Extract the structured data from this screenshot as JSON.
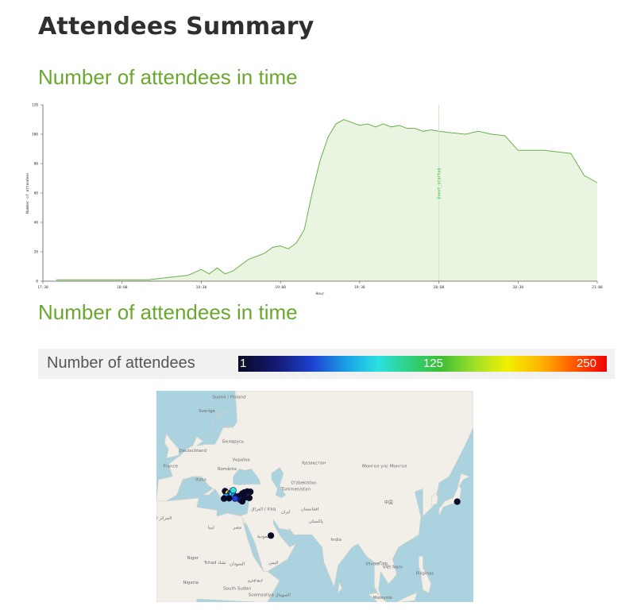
{
  "page": {
    "title": "Attendees Summary"
  },
  "sections": [
    {
      "title": "Number of attendees in time"
    },
    {
      "title": "Number of attendees in time"
    }
  ],
  "chart_data": {
    "type": "area",
    "title": "",
    "xlabel": "Hour",
    "ylabel": "Number of attendees",
    "x_ticks": [
      "17:30",
      "18:00",
      "18:30",
      "19:00",
      "19:30",
      "20:00",
      "20:30",
      "21:00"
    ],
    "y_ticks": [
      0,
      20,
      40,
      60,
      80,
      100,
      120
    ],
    "ylim": [
      0,
      120
    ],
    "annotation": {
      "x": "20:00",
      "label": "Event_started"
    },
    "series": [
      {
        "x": [
          "17:35",
          "17:40",
          "17:45",
          "17:50",
          "17:55",
          "18:00",
          "18:05",
          "18:10",
          "18:15",
          "18:20",
          "18:25",
          "18:30",
          "18:33",
          "18:36",
          "18:39",
          "18:42",
          "18:45",
          "18:48",
          "18:51",
          "18:54",
          "18:57",
          "19:00",
          "19:03",
          "19:06",
          "19:09",
          "19:12",
          "19:15",
          "19:18",
          "19:21",
          "19:24",
          "19:27",
          "19:30",
          "19:33",
          "19:36",
          "19:39",
          "19:42",
          "19:45",
          "19:48",
          "19:51",
          "19:54",
          "19:57",
          "20:00",
          "20:05",
          "20:10",
          "20:15",
          "20:20",
          "20:25",
          "20:30",
          "20:35",
          "20:40",
          "20:45",
          "20:50",
          "20:55",
          "21:00"
        ],
        "values": [
          1,
          1,
          1,
          1,
          1,
          1,
          1,
          1,
          2,
          3,
          4,
          8,
          5,
          9,
          5,
          7,
          11,
          15,
          17,
          19,
          23,
          24,
          22,
          26,
          35,
          60,
          82,
          98,
          107,
          110,
          108,
          106,
          107,
          105,
          107,
          105,
          106,
          104,
          104,
          102,
          103,
          102,
          101,
          100,
          102,
          100,
          99,
          89,
          89,
          89,
          88,
          87,
          72,
          67
        ]
      }
    ],
    "colors": {
      "line": "#6ab04c",
      "fill": "#eaf5e1",
      "annotation": "#2fbf2f"
    }
  },
  "legend": {
    "label": "Number of attendees",
    "ticks": [
      "1",
      "125",
      "250"
    ]
  },
  "map": {
    "place_labels": [
      "Suomi / Finland",
      "Sverige",
      "Беларусь",
      "Deutschland",
      "France",
      "Україна",
      "România",
      "Italia",
      "Қазақстан",
      "Монгол улс Монгол",
      "O'zbekiston",
      "Türkmenistan",
      "中国",
      "العراق / Iraq",
      "ایران",
      "افغانستان",
      "پاکستان",
      "السعودية",
      "India",
      "ليبيا",
      "Niger",
      "Tchad تشاد",
      "السودان",
      "Nigeria",
      "South Sudan",
      "ኢትዮጵያ",
      "Soomaaliya الصومال",
      "اليمن",
      "Việt Nam",
      "Pilipinas",
      "Malaysia",
      "ประเทศไทย",
      "ria / الجزائر",
      "مصر"
    ],
    "colors": {
      "sea": "#aad3df",
      "land": "#f2efe9",
      "border": "#b9a9c6"
    },
    "points": [
      {
        "lon": 24,
        "lat": 39.2,
        "count": 5
      },
      {
        "lon": 25.5,
        "lat": 38.6,
        "count": 200
      },
      {
        "lon": 26.5,
        "lat": 38.4,
        "count": 60
      },
      {
        "lon": 27.5,
        "lat": 38.2,
        "count": 110
      },
      {
        "lon": 28.5,
        "lat": 37.8,
        "count": 80
      },
      {
        "lon": 29.5,
        "lat": 37.4,
        "count": 30
      },
      {
        "lon": 31,
        "lat": 37.6,
        "count": 20
      },
      {
        "lon": 32.5,
        "lat": 38.4,
        "count": 15
      },
      {
        "lon": 33.5,
        "lat": 38.8,
        "count": 10
      },
      {
        "lon": 35,
        "lat": 39.1,
        "count": 8
      },
      {
        "lon": 36.5,
        "lat": 39.0,
        "count": 5
      },
      {
        "lon": 34,
        "lat": 37.2,
        "count": 12
      },
      {
        "lon": 36,
        "lat": 37.0,
        "count": 6
      },
      {
        "lon": 31.5,
        "lat": 36.4,
        "count": 40
      },
      {
        "lon": 32.5,
        "lat": 35.9,
        "count": 15
      },
      {
        "lon": 29,
        "lat": 36.8,
        "count": 70
      },
      {
        "lon": 24.5,
        "lat": 37.5,
        "count": 90
      },
      {
        "lon": 23.5,
        "lat": 36.8,
        "count": 5
      },
      {
        "lon": 26,
        "lat": 36.9,
        "count": 25
      },
      {
        "lon": 28,
        "lat": 39.5,
        "count": 100
      },
      {
        "lon": 46.7,
        "lat": 24.7,
        "count": 3
      },
      {
        "lon": 139,
        "lat": 35.8,
        "count": 2
      }
    ]
  }
}
